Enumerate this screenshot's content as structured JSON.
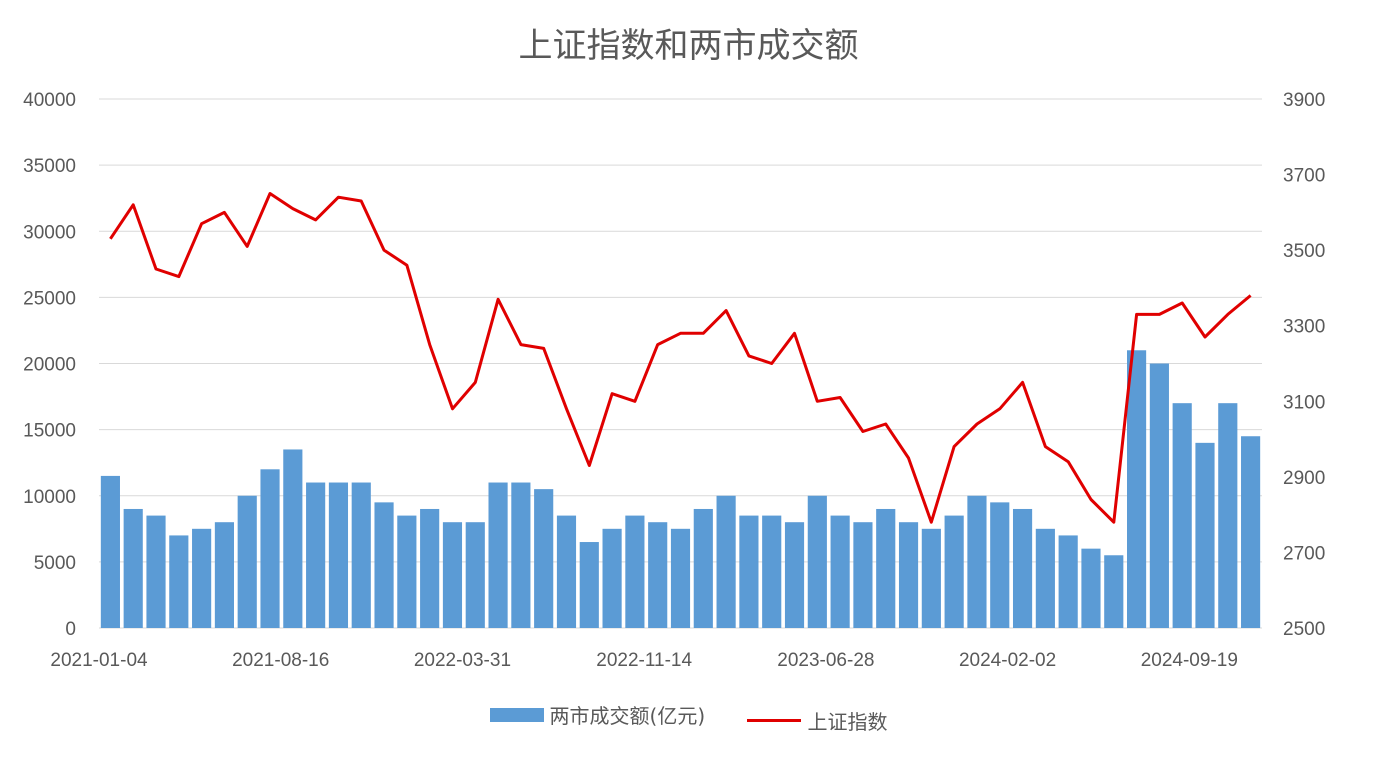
{
  "colors": {
    "bar": "#5b9bd5",
    "line": "#e00000",
    "grid": "#d9d9d9",
    "text": "#595959"
  },
  "chart_data": {
    "type": "bar",
    "title": "上证指数和两市成交额",
    "x_tick_labels": [
      "2021-01-04",
      "2021-08-16",
      "2022-03-31",
      "2022-11-14",
      "2023-06-28",
      "2024-02-02",
      "2024-09-19"
    ],
    "y_left": {
      "ylim": [
        0,
        40000
      ],
      "ticks": [
        0,
        5000,
        10000,
        15000,
        20000,
        25000,
        30000,
        35000,
        40000
      ]
    },
    "y_right": {
      "ylim": [
        2500,
        3900
      ],
      "ticks": [
        2500,
        2700,
        2900,
        3100,
        3300,
        3500,
        3700,
        3900
      ]
    },
    "grid": true,
    "legend_position": "bottom",
    "series": [
      {
        "name": "两市成交额(亿元)",
        "type": "bar",
        "axis": "left",
        "x": [
          "2021-01",
          "2021-02",
          "2021-03",
          "2021-04",
          "2021-05",
          "2021-06",
          "2021-07",
          "2021-08",
          "2021-09",
          "2021-10",
          "2021-11",
          "2021-12",
          "2022-01",
          "2022-02",
          "2022-03",
          "2022-04",
          "2022-05",
          "2022-06",
          "2022-07",
          "2022-08",
          "2022-09",
          "2022-10",
          "2022-11",
          "2022-12",
          "2023-01",
          "2023-02",
          "2023-03",
          "2023-04",
          "2023-05",
          "2023-06",
          "2023-07",
          "2023-08",
          "2023-09",
          "2023-10",
          "2023-11",
          "2023-12",
          "2024-01",
          "2024-02",
          "2024-03",
          "2024-04",
          "2024-05",
          "2024-06",
          "2024-07",
          "2024-08",
          "2024-09",
          "2024-10",
          "2024-11",
          "2024-12",
          "2025-01",
          "2025-02",
          "2025-03"
        ],
        "values": [
          11500,
          9000,
          8500,
          7000,
          7500,
          8000,
          10000,
          12000,
          13500,
          11000,
          11000,
          11000,
          9500,
          8500,
          9000,
          8000,
          8000,
          11000,
          11000,
          10500,
          8500,
          6500,
          7500,
          8500,
          8000,
          7500,
          9000,
          10000,
          8500,
          8500,
          8000,
          10000,
          8500,
          8000,
          9000,
          8000,
          7500,
          8500,
          10000,
          9500,
          9000,
          7500,
          7000,
          6000,
          5500,
          21000,
          20000,
          17000,
          14000,
          17000,
          14500
        ]
      },
      {
        "name": "上证指数",
        "type": "line",
        "axis": "right",
        "x": [
          "2021-01",
          "2021-02",
          "2021-03",
          "2021-04",
          "2021-05",
          "2021-06",
          "2021-07",
          "2021-08",
          "2021-09",
          "2021-10",
          "2021-11",
          "2021-12",
          "2022-01",
          "2022-02",
          "2022-03",
          "2022-04",
          "2022-05",
          "2022-06",
          "2022-07",
          "2022-08",
          "2022-09",
          "2022-10",
          "2022-11",
          "2022-12",
          "2023-01",
          "2023-02",
          "2023-03",
          "2023-04",
          "2023-05",
          "2023-06",
          "2023-07",
          "2023-08",
          "2023-09",
          "2023-10",
          "2023-11",
          "2023-12",
          "2024-01",
          "2024-02",
          "2024-03",
          "2024-04",
          "2024-05",
          "2024-06",
          "2024-07",
          "2024-08",
          "2024-09",
          "2024-10",
          "2024-11",
          "2024-12",
          "2025-01",
          "2025-02",
          "2025-03"
        ],
        "values": [
          3530,
          3620,
          3450,
          3430,
          3570,
          3600,
          3510,
          3650,
          3610,
          3580,
          3640,
          3630,
          3500,
          3460,
          3250,
          3080,
          3150,
          3370,
          3250,
          3240,
          3080,
          2930,
          3120,
          3100,
          3250,
          3280,
          3280,
          3340,
          3220,
          3200,
          3280,
          3100,
          3110,
          3020,
          3040,
          2950,
          2780,
          2980,
          3040,
          3080,
          3150,
          2980,
          2940,
          2840,
          2780,
          3330,
          3330,
          3360,
          3270,
          3330,
          3380
        ]
      }
    ]
  }
}
